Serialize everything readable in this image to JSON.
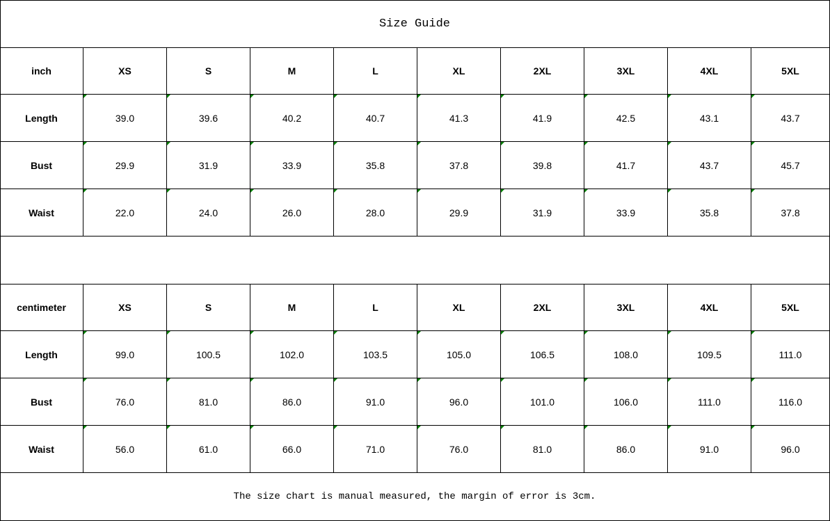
{
  "title": "Size Guide",
  "sizes": [
    "XS",
    "S",
    "M",
    "L",
    "XL",
    "2XL",
    "3XL",
    "4XL",
    "5XL"
  ],
  "tables": [
    {
      "unit": "inch",
      "rows": [
        {
          "label": "Length",
          "values": [
            "39.0",
            "39.6",
            "40.2",
            "40.7",
            "41.3",
            "41.9",
            "42.5",
            "43.1",
            "43.7"
          ]
        },
        {
          "label": "Bust",
          "values": [
            "29.9",
            "31.9",
            "33.9",
            "35.8",
            "37.8",
            "39.8",
            "41.7",
            "43.7",
            "45.7"
          ]
        },
        {
          "label": "Waist",
          "values": [
            "22.0",
            "24.0",
            "26.0",
            "28.0",
            "29.9",
            "31.9",
            "33.9",
            "35.8",
            "37.8"
          ]
        }
      ]
    },
    {
      "unit": "centimeter",
      "rows": [
        {
          "label": "Length",
          "values": [
            "99.0",
            "100.5",
            "102.0",
            "103.5",
            "105.0",
            "106.5",
            "108.0",
            "109.5",
            "111.0"
          ]
        },
        {
          "label": "Bust",
          "values": [
            "76.0",
            "81.0",
            "86.0",
            "91.0",
            "96.0",
            "101.0",
            "106.0",
            "111.0",
            "116.0"
          ]
        },
        {
          "label": "Waist",
          "values": [
            "56.0",
            "61.0",
            "66.0",
            "71.0",
            "76.0",
            "81.0",
            "86.0",
            "91.0",
            "96.0"
          ]
        }
      ]
    }
  ],
  "footnote": "The size chart is manual measured, the margin of error is 3cm.",
  "colors": {
    "cell_marker": "#008000",
    "border": "#000000"
  }
}
